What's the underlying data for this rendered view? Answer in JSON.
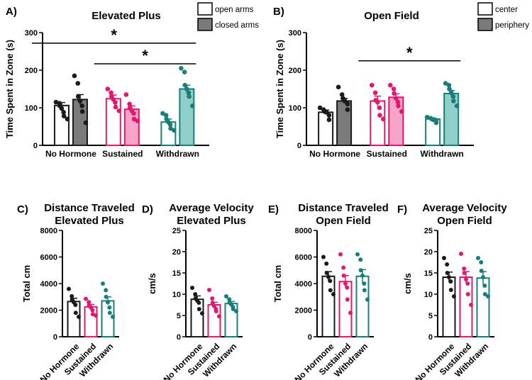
{
  "colors": {
    "black": "#1a1a1a",
    "pink": "#e0196e",
    "pink_fill": "#f5a3c6",
    "teal": "#177f78",
    "teal_fill": "#8fcfc9",
    "gray_fill": "#7a7a7a"
  },
  "chart_data": [
    {
      "panel": "A)",
      "type": "bar",
      "title": "Elevated Plus",
      "ylabel": "Time Spent in Zone (s)",
      "ylim": [
        0,
        300
      ],
      "yticks": [
        0,
        100,
        200,
        300
      ],
      "categories": [
        "No Hormone",
        "Sustained",
        "Withdrawn"
      ],
      "legend": [
        "open arms",
        "closed arms"
      ],
      "series": [
        {
          "name": "open arms",
          "values": [
            106,
            124,
            62
          ],
          "err": [
            8,
            10,
            8
          ],
          "points": [
            [
              115,
              112,
              105,
              98,
              88,
              78,
              70
            ],
            [
              150,
              140,
              130,
              122,
              114,
              102,
              92
            ],
            [
              85,
              80,
              70,
              62,
              55,
              45,
              40
            ]
          ]
        },
        {
          "name": "closed arms",
          "values": [
            122,
            96,
            150
          ],
          "err": [
            13,
            9,
            10
          ],
          "points": [
            [
              185,
              165,
              130,
              118,
              105,
              90,
              60
            ],
            [
              135,
              110,
              100,
              92,
              85,
              70,
              65
            ],
            [
              205,
              195,
              160,
              150,
              140,
              130,
              105
            ]
          ]
        }
      ],
      "significance": [
        {
          "groups": [
            "No Hormone",
            "Withdrawn"
          ],
          "label": "*",
          "y": 272
        },
        {
          "groups": [
            "Sustained",
            "Withdrawn"
          ],
          "label": "*",
          "y": 217
        }
      ]
    },
    {
      "panel": "B)",
      "type": "bar",
      "title": "Open Field",
      "ylabel": "Time Spent in Zone (s)",
      "ylim": [
        0,
        300
      ],
      "yticks": [
        0,
        100,
        200,
        300
      ],
      "categories": [
        "No Hormone",
        "Sustained",
        "Withdrawn"
      ],
      "legend": [
        "center",
        "periphery"
      ],
      "series": [
        {
          "name": "center",
          "values": [
            88,
            118,
            70
          ],
          "err": [
            6,
            13,
            3
          ],
          "points": [
            [
              100,
              95,
              90,
              88,
              80,
              68
            ],
            [
              160,
              140,
              120,
              115,
              100,
              80,
              70
            ],
            [
              75,
              72,
              70,
              68,
              65,
              60
            ]
          ]
        },
        {
          "name": "periphery",
          "values": [
            118,
            128,
            138
          ],
          "err": [
            7,
            9,
            8
          ],
          "points": [
            [
              155,
              135,
              125,
              118,
              110,
              95
            ],
            [
              160,
              150,
              138,
              125,
              115,
              105,
              90
            ],
            [
              165,
              160,
              150,
              140,
              130,
              118,
              105
            ]
          ]
        }
      ],
      "significance": [
        {
          "groups": [
            "Sustained",
            "Withdrawn"
          ],
          "label": "*",
          "y": 225
        }
      ]
    },
    {
      "panel": "C)",
      "type": "bar",
      "title": [
        "Distance Traveled",
        "Elevated Plus"
      ],
      "ylabel": "Total cm",
      "ylim": [
        0,
        8000
      ],
      "yticks": [
        0,
        2000,
        4000,
        6000,
        8000
      ],
      "categories": [
        "No Hormone",
        "Sustained",
        "Withdrawn"
      ],
      "values": [
        2650,
        2250,
        2700
      ],
      "err": [
        250,
        180,
        300
      ],
      "points": [
        [
          3600,
          3050,
          2800,
          2600,
          2400,
          1800,
          1500
        ],
        [
          2850,
          2600,
          2350,
          2200,
          2000,
          1700,
          1600
        ],
        [
          4000,
          3500,
          3000,
          2600,
          2200,
          1800,
          1500
        ]
      ]
    },
    {
      "panel": "D)",
      "type": "bar",
      "title": [
        "Average Velocity",
        "Elevated Plus"
      ],
      "ylabel": "cm/s",
      "ylim": [
        0,
        25
      ],
      "yticks": [
        0,
        5,
        10,
        15,
        20,
        25
      ],
      "categories": [
        "No Hormone",
        "Sustained",
        "Withdrawn"
      ],
      "values": [
        8.8,
        7.5,
        7.8
      ],
      "err": [
        0.8,
        0.6,
        0.5
      ],
      "points": [
        [
          11.5,
          10.0,
          9.0,
          8.5,
          8.0,
          6.5,
          5.5
        ],
        [
          11.0,
          9.0,
          8.0,
          7.2,
          6.5,
          6.0,
          4.8
        ],
        [
          9.5,
          8.8,
          8.0,
          7.6,
          7.0,
          6.5,
          6.0
        ]
      ]
    },
    {
      "panel": "E)",
      "type": "bar",
      "title": [
        "Distance Traveled",
        "Open Field"
      ],
      "ylabel": "Total cm",
      "ylim": [
        0,
        8000
      ],
      "yticks": [
        0,
        2000,
        4000,
        6000,
        8000
      ],
      "categories": [
        "No Hormone",
        "Sustained",
        "Withdrawn"
      ],
      "values": [
        4550,
        4150,
        4550
      ],
      "err": [
        350,
        450,
        500
      ],
      "points": [
        [
          6000,
          5500,
          4800,
          4500,
          4200,
          3500,
          3200
        ],
        [
          6200,
          5200,
          4600,
          4000,
          3700,
          2800,
          1800
        ],
        [
          6200,
          5800,
          5000,
          4600,
          4000,
          3500,
          2800
        ]
      ]
    },
    {
      "panel": "F)",
      "type": "bar",
      "title": [
        "Average Velocity",
        "Open Field"
      ],
      "ylabel": "cm/s",
      "ylim": [
        0,
        25
      ],
      "yticks": [
        0,
        5,
        10,
        15,
        20,
        25
      ],
      "categories": [
        "No Hormone",
        "Sustained",
        "Withdrawn"
      ],
      "values": [
        14.0,
        14.0,
        13.8
      ],
      "err": [
        1.2,
        1.3,
        1.5
      ],
      "points": [
        [
          18.5,
          17.0,
          15.0,
          14.0,
          13.0,
          11.0,
          9.5
        ],
        [
          19.5,
          16.0,
          15.0,
          13.5,
          12.5,
          10.0,
          7.5
        ],
        [
          18.5,
          17.5,
          15.5,
          14.0,
          12.0,
          10.0,
          9.5
        ]
      ]
    }
  ]
}
